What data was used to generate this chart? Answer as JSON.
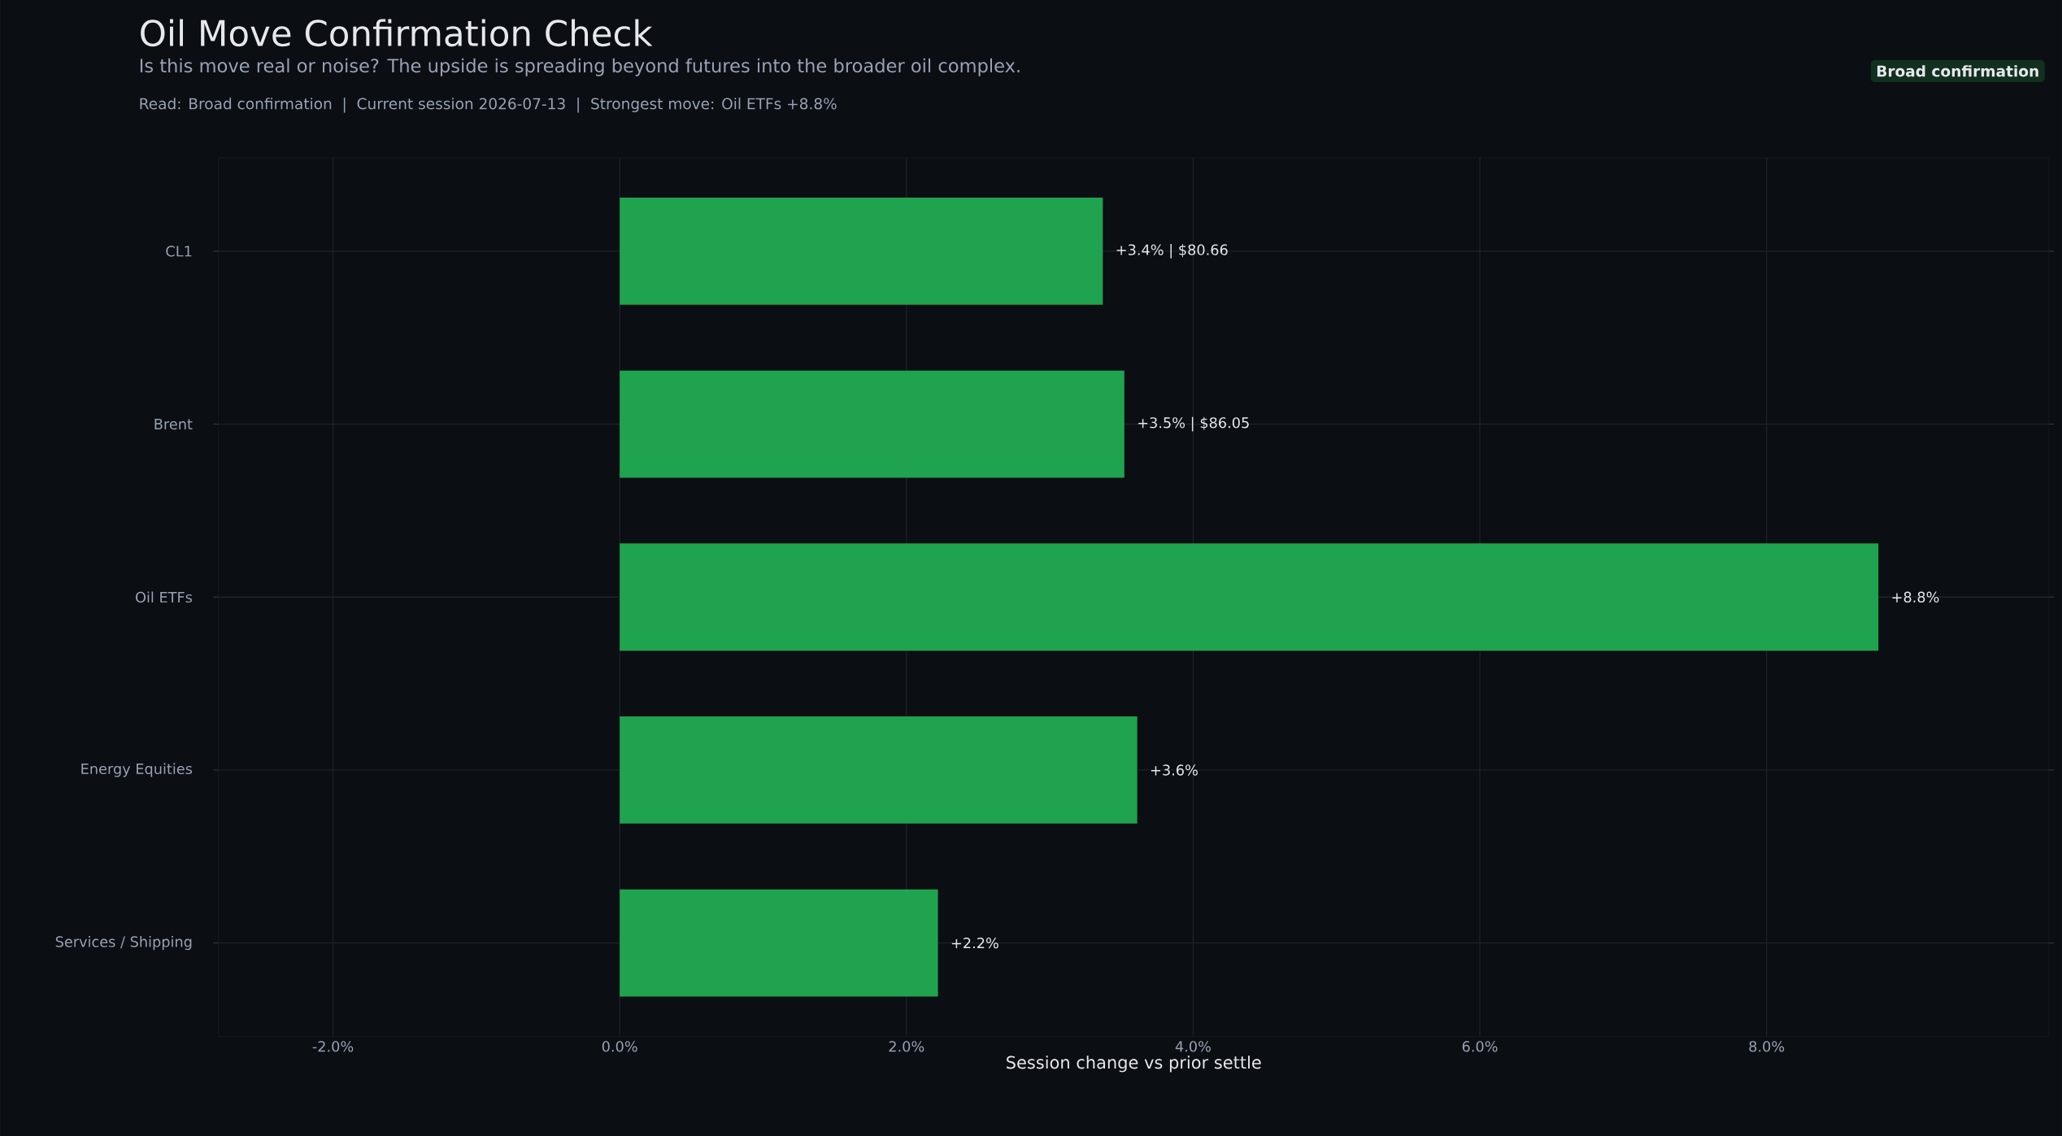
{
  "chart_data": {
    "type": "bar",
    "orientation": "horizontal",
    "title": "Oil Move Confirmation Check",
    "subtitle": "Is this move real or noise? The upside is spreading beyond futures into the broader oil complex.",
    "annotations": [
      "Read: Broad confirmation  |  Current session 2026-07-13  |  Strongest move: Oil ETFs +8.8%",
      "Broad confirmation"
    ],
    "xlabel": "Session change vs prior settle",
    "categories": [
      "CL1",
      "Brent",
      "Oil ETFs",
      "Energy Equities",
      "Services / Shipping"
    ],
    "values": [
      3.37,
      3.52,
      8.78,
      3.61,
      2.22
    ],
    "value_labels": [
      "+3.4% | $80.66",
      "+3.5% | $86.05",
      "+8.8%",
      "+3.6%",
      "+2.2%"
    ],
    "color": "#1fa34f",
    "xlim": [
      -2.8,
      9.97
    ],
    "xticks": [
      {
        "value": -2,
        "label": "-2.0%"
      },
      {
        "value": 0,
        "label": "0.0%"
      },
      {
        "value": 2,
        "label": "2.0%"
      },
      {
        "value": 4,
        "label": "4.0%"
      },
      {
        "value": 6,
        "label": "6.0%"
      },
      {
        "value": 8,
        "label": "8.0%"
      }
    ],
    "grid": true
  }
}
